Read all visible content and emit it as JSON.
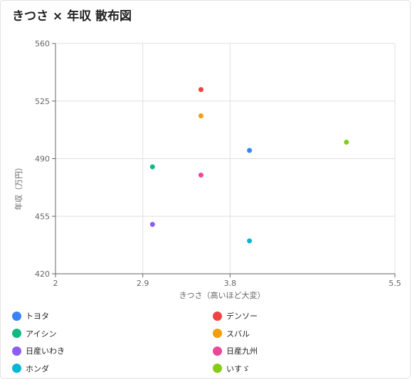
{
  "chart_data": {
    "type": "scatter",
    "title": "きつさ × 年収 散布図",
    "xlabel": "きつさ（高いほど大変）",
    "ylabel": "年収（万円）",
    "xlim": [
      2,
      5.5
    ],
    "ylim": [
      420,
      560
    ],
    "xticks": [
      "2",
      "2.9",
      "3.8",
      "5.5"
    ],
    "yticks": [
      "420",
      "455",
      "490",
      "525",
      "560"
    ],
    "grid": true,
    "legend_position": "bottom",
    "series": [
      {
        "name": "トヨタ",
        "color": "#3b82f6",
        "x": [
          4.0
        ],
        "y": [
          495
        ]
      },
      {
        "name": "デンソー",
        "color": "#ef4444",
        "x": [
          3.5
        ],
        "y": [
          532
        ]
      },
      {
        "name": "アイシン",
        "color": "#10b981",
        "x": [
          3.0
        ],
        "y": [
          485
        ]
      },
      {
        "name": "スバル",
        "color": "#f59e0b",
        "x": [
          3.5
        ],
        "y": [
          516
        ]
      },
      {
        "name": "日産いわき",
        "color": "#8b5cf6",
        "x": [
          3.0
        ],
        "y": [
          450
        ]
      },
      {
        "name": "日産九州",
        "color": "#ec4899",
        "x": [
          3.5
        ],
        "y": [
          480
        ]
      },
      {
        "name": "ホンダ",
        "color": "#06b6d4",
        "x": [
          4.0
        ],
        "y": [
          440
        ]
      },
      {
        "name": "いすゞ",
        "color": "#84cc16",
        "x": [
          5.0
        ],
        "y": [
          500
        ]
      }
    ]
  }
}
